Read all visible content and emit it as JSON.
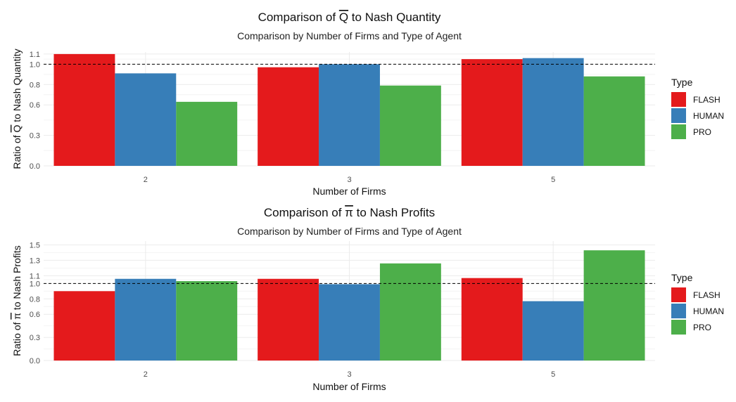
{
  "chart_data": [
    {
      "type": "bar",
      "title_prefix": "Comparison of",
      "title_symbol": "Q",
      "title_symbol_overline": true,
      "title_suffix": "to Nash Quantity",
      "subtitle": "Comparison by Number of Firms and Type of Agent",
      "xlabel": "Number of Firms",
      "ylabel_prefix": "Ratio of",
      "ylabel_symbol": "Q",
      "ylabel_suffix": "to Nash Quantity",
      "categories": [
        "2",
        "3",
        "5"
      ],
      "yticks": [
        0.0,
        0.3,
        0.6,
        0.8,
        1.0,
        1.1
      ],
      "ytick_labels": [
        "0.0",
        "0.3",
        "0.6",
        "0.8",
        "1.0",
        "1.1"
      ],
      "ylim": [
        0,
        1.12
      ],
      "reference_line": 1.0,
      "legend_title": "Type",
      "legend_position": "right",
      "series": [
        {
          "name": "FLASH",
          "color": "#E41A1C",
          "values": [
            1.1,
            0.97,
            1.05
          ]
        },
        {
          "name": "HUMAN",
          "color": "#377EB8",
          "values": [
            0.91,
            1.0,
            1.06
          ]
        },
        {
          "name": "PRO",
          "color": "#4DAF4A",
          "values": [
            0.63,
            0.79,
            0.88
          ]
        }
      ]
    },
    {
      "type": "bar",
      "title_prefix": "Comparison of",
      "title_symbol": "π",
      "title_symbol_overline": true,
      "title_suffix": "to Nash Profits",
      "subtitle": "Comparison by Number of Firms and Type of Agent",
      "xlabel": "Number of Firms",
      "ylabel_prefix": "Ratio of",
      "ylabel_symbol": "π",
      "ylabel_suffix": "to Nash Profits",
      "categories": [
        "2",
        "3",
        "5"
      ],
      "yticks": [
        0.0,
        0.3,
        0.6,
        0.8,
        1.0,
        1.1,
        1.3,
        1.5
      ],
      "ytick_labels": [
        "0.0",
        "0.3",
        "0.6",
        "0.8",
        "1.0",
        "1.1",
        "1.3",
        "1.5"
      ],
      "ylim": [
        0,
        1.55
      ],
      "reference_line": 1.0,
      "legend_title": "Type",
      "legend_position": "right",
      "series": [
        {
          "name": "FLASH",
          "color": "#E41A1C",
          "values": [
            0.9,
            1.06,
            1.07
          ]
        },
        {
          "name": "HUMAN",
          "color": "#377EB8",
          "values": [
            1.06,
            0.99,
            0.77
          ]
        },
        {
          "name": "PRO",
          "color": "#4DAF4A",
          "values": [
            1.03,
            1.26,
            1.43
          ]
        }
      ]
    }
  ]
}
